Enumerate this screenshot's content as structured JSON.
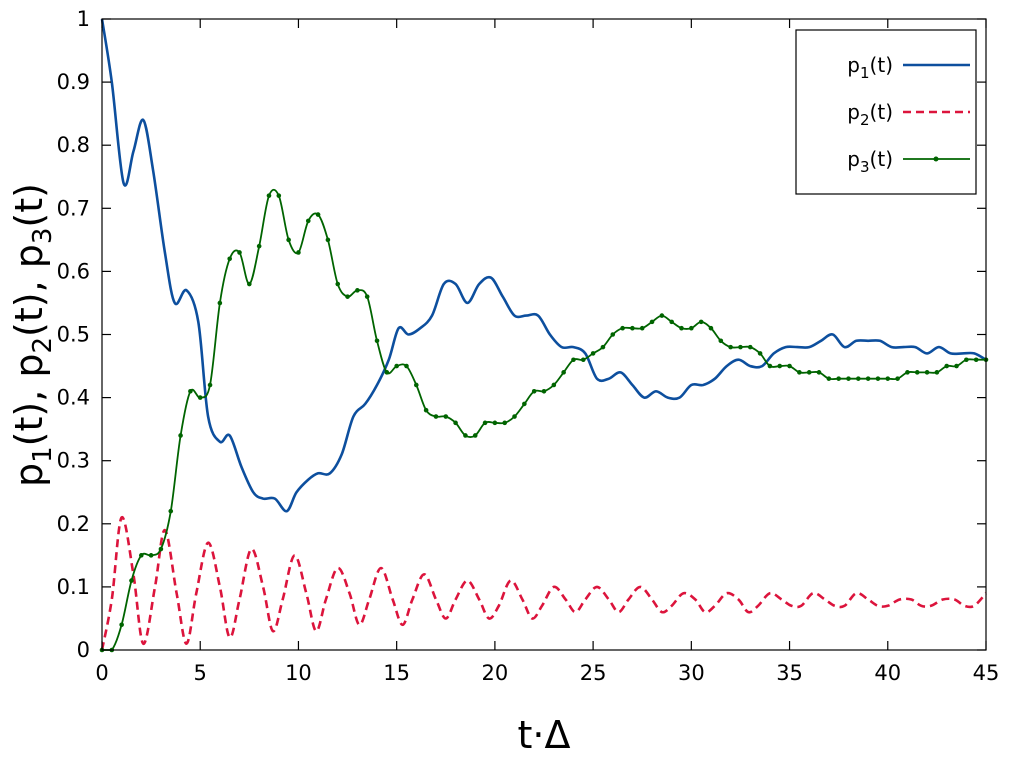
{
  "chart_data": {
    "type": "line",
    "xlabel": "t·Δ",
    "ylabel": "p1(t), p2(t), p3(t)",
    "xlim": [
      0,
      45
    ],
    "ylim": [
      0,
      1
    ],
    "x_ticks": [
      "0",
      "5",
      "10",
      "15",
      "20",
      "25",
      "30",
      "35",
      "40",
      "45"
    ],
    "y_ticks": [
      "0",
      "0.1",
      "0.2",
      "0.3",
      "0.4",
      "0.5",
      "0.6",
      "0.7",
      "0.8",
      "0.9",
      "1"
    ],
    "grid": false,
    "legend_position": "top-right",
    "series": [
      {
        "name": "p1(t)",
        "color": "#0d4f9e",
        "style": "solid",
        "x": [
          0,
          0.5,
          1.1,
          1.6,
          2.1,
          2.6,
          3.2,
          3.7,
          4.3,
          4.9,
          5.4,
          6.0,
          6.5,
          7.1,
          7.7,
          8.2,
          8.8,
          9.4,
          9.9,
          10.5,
          11.0,
          11.6,
          12.2,
          12.8,
          13.4,
          14.0,
          14.6,
          15.1,
          15.6,
          16.2,
          16.8,
          17.4,
          18.0,
          18.6,
          19.2,
          19.8,
          20.4,
          21.0,
          21.6,
          22.2,
          22.8,
          23.4,
          24.0,
          24.6,
          25.2,
          25.8,
          26.4,
          27.0,
          27.6,
          28.2,
          28.8,
          29.4,
          30.0,
          30.6,
          31.2,
          31.8,
          32.4,
          33.0,
          33.6,
          34.2,
          34.8,
          35.4,
          36.0,
          36.6,
          37.2,
          37.8,
          38.4,
          39.0,
          39.6,
          40.2,
          40.8,
          41.4,
          42.0,
          42.6,
          43.2,
          43.8,
          44.4,
          45.0
        ],
        "values": [
          1.0,
          0.9,
          0.74,
          0.79,
          0.84,
          0.76,
          0.63,
          0.55,
          0.57,
          0.52,
          0.37,
          0.33,
          0.34,
          0.29,
          0.25,
          0.24,
          0.24,
          0.22,
          0.25,
          0.27,
          0.28,
          0.28,
          0.31,
          0.37,
          0.39,
          0.42,
          0.46,
          0.51,
          0.5,
          0.51,
          0.53,
          0.58,
          0.58,
          0.55,
          0.58,
          0.59,
          0.56,
          0.53,
          0.53,
          0.53,
          0.5,
          0.48,
          0.48,
          0.47,
          0.43,
          0.43,
          0.44,
          0.42,
          0.4,
          0.41,
          0.4,
          0.4,
          0.42,
          0.42,
          0.43,
          0.45,
          0.46,
          0.45,
          0.45,
          0.47,
          0.48,
          0.48,
          0.48,
          0.49,
          0.5,
          0.48,
          0.49,
          0.49,
          0.49,
          0.48,
          0.48,
          0.48,
          0.47,
          0.48,
          0.47,
          0.47,
          0.47,
          0.46
        ]
      },
      {
        "name": "p2(t)",
        "color": "#dc143c",
        "style": "dashed",
        "x": [
          0,
          0.5,
          1.0,
          1.6,
          2.1,
          2.7,
          3.2,
          3.8,
          4.3,
          4.8,
          5.4,
          6.0,
          6.5,
          7.0,
          7.6,
          8.2,
          8.7,
          9.2,
          9.8,
          10.4,
          10.9,
          11.4,
          12.0,
          12.6,
          13.1,
          13.6,
          14.2,
          14.8,
          15.3,
          15.8,
          16.4,
          17.0,
          17.5,
          18.0,
          18.6,
          19.2,
          19.7,
          20.2,
          20.8,
          21.4,
          21.9,
          22.4,
          23.0,
          23.6,
          24.1,
          24.6,
          25.2,
          25.8,
          26.3,
          26.8,
          27.4,
          28.0,
          28.5,
          29.0,
          29.6,
          30.2,
          30.7,
          31.2,
          31.8,
          32.4,
          32.9,
          33.4,
          34.0,
          34.6,
          35.1,
          35.6,
          36.2,
          36.8,
          37.3,
          37.8,
          38.4,
          39.0,
          39.5,
          40.0,
          40.6,
          41.2,
          41.7,
          42.2,
          42.8,
          43.4,
          43.9,
          44.4,
          45.0
        ],
        "values": [
          0.0,
          0.08,
          0.21,
          0.12,
          0.01,
          0.1,
          0.19,
          0.09,
          0.01,
          0.09,
          0.17,
          0.1,
          0.02,
          0.08,
          0.16,
          0.1,
          0.03,
          0.08,
          0.15,
          0.09,
          0.03,
          0.08,
          0.13,
          0.09,
          0.04,
          0.08,
          0.13,
          0.08,
          0.04,
          0.08,
          0.12,
          0.08,
          0.05,
          0.08,
          0.11,
          0.08,
          0.05,
          0.07,
          0.11,
          0.08,
          0.05,
          0.07,
          0.1,
          0.08,
          0.06,
          0.08,
          0.1,
          0.08,
          0.06,
          0.08,
          0.1,
          0.08,
          0.06,
          0.07,
          0.09,
          0.08,
          0.06,
          0.07,
          0.09,
          0.08,
          0.06,
          0.07,
          0.09,
          0.08,
          0.07,
          0.07,
          0.09,
          0.08,
          0.07,
          0.07,
          0.09,
          0.08,
          0.07,
          0.07,
          0.08,
          0.08,
          0.07,
          0.07,
          0.08,
          0.08,
          0.07,
          0.07,
          0.09
        ]
      },
      {
        "name": "p3(t)",
        "color": "#006400",
        "style": "solid-markers",
        "x": [
          0,
          0.5,
          1.0,
          1.5,
          2.0,
          2.5,
          3.0,
          3.5,
          4.0,
          4.5,
          5.0,
          5.5,
          6.0,
          6.5,
          7.0,
          7.5,
          8.0,
          8.5,
          9.0,
          9.5,
          10.0,
          10.5,
          11.0,
          11.5,
          12.0,
          12.5,
          13.0,
          13.5,
          14.0,
          14.5,
          15.0,
          15.5,
          16.0,
          16.5,
          17.0,
          17.5,
          18.0,
          18.5,
          19.0,
          19.5,
          20.0,
          20.5,
          21.0,
          21.5,
          22.0,
          22.5,
          23.0,
          23.5,
          24.0,
          24.5,
          25.0,
          25.5,
          26.0,
          26.5,
          27.0,
          27.5,
          28.0,
          28.5,
          29.0,
          29.5,
          30.0,
          30.5,
          31.0,
          31.5,
          32.0,
          32.5,
          33.0,
          33.5,
          34.0,
          34.5,
          35.0,
          35.5,
          36.0,
          36.5,
          37.0,
          37.5,
          38.0,
          38.5,
          39.0,
          39.5,
          40.0,
          40.5,
          41.0,
          41.5,
          42.0,
          42.5,
          43.0,
          43.5,
          44.0,
          44.5,
          45.0
        ],
        "values": [
          0.0,
          0.0,
          0.04,
          0.11,
          0.15,
          0.15,
          0.16,
          0.22,
          0.34,
          0.41,
          0.4,
          0.42,
          0.55,
          0.62,
          0.63,
          0.58,
          0.64,
          0.72,
          0.72,
          0.65,
          0.63,
          0.68,
          0.69,
          0.65,
          0.58,
          0.56,
          0.57,
          0.56,
          0.49,
          0.44,
          0.45,
          0.45,
          0.42,
          0.38,
          0.37,
          0.37,
          0.36,
          0.34,
          0.34,
          0.36,
          0.36,
          0.36,
          0.37,
          0.39,
          0.41,
          0.41,
          0.42,
          0.44,
          0.46,
          0.46,
          0.47,
          0.48,
          0.5,
          0.51,
          0.51,
          0.51,
          0.52,
          0.53,
          0.52,
          0.51,
          0.51,
          0.52,
          0.51,
          0.49,
          0.48,
          0.48,
          0.48,
          0.47,
          0.45,
          0.45,
          0.45,
          0.44,
          0.44,
          0.44,
          0.43,
          0.43,
          0.43,
          0.43,
          0.43,
          0.43,
          0.43,
          0.43,
          0.44,
          0.44,
          0.44,
          0.44,
          0.45,
          0.45,
          0.46,
          0.46,
          0.46
        ]
      }
    ]
  }
}
